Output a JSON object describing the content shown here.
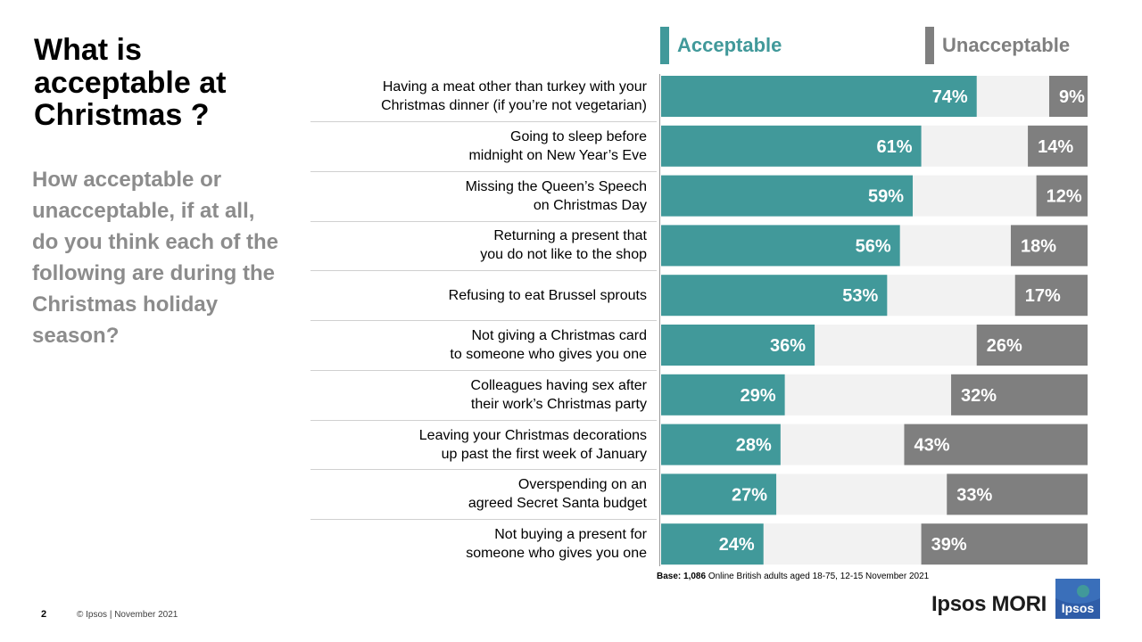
{
  "title": "What is acceptable at Christmas ?",
  "subtitle": "How acceptable or unacceptable, if at all, do you think each of the following are during the Christmas holiday season?",
  "legend": {
    "acceptable": "Acceptable",
    "unacceptable": "Unacceptable"
  },
  "colors": {
    "acceptable": "#41999a",
    "unacceptable": "#7f7f7f",
    "track": "#f2f2f2"
  },
  "chart_data": {
    "type": "bar",
    "orientation": "horizontal",
    "stacking": "acceptable anchored left, unacceptable anchored right",
    "xlim": [
      0,
      100
    ],
    "categories": [
      [
        "Having a meat other than turkey with your",
        "Christmas dinner (if you’re not vegetarian)"
      ],
      [
        "Going to sleep before",
        "midnight on New Year’s Eve"
      ],
      [
        "Missing the Queen’s Speech",
        "on Christmas Day"
      ],
      [
        "Returning a present that",
        "you do not like to the shop"
      ],
      [
        "Refusing to eat Brussel sprouts"
      ],
      [
        "Not giving a Christmas card",
        "to someone who gives you one"
      ],
      [
        "Colleagues having sex after",
        "their work’s Christmas party"
      ],
      [
        "Leaving your Christmas decorations",
        "up past the first week of January"
      ],
      [
        "Overspending on an",
        "agreed Secret Santa budget"
      ],
      [
        "Not buying a present for",
        "someone who gives you one"
      ]
    ],
    "series": [
      {
        "name": "Acceptable",
        "values": [
          74,
          61,
          59,
          56,
          53,
          36,
          29,
          28,
          27,
          24
        ]
      },
      {
        "name": "Unacceptable",
        "values": [
          9,
          14,
          12,
          18,
          17,
          26,
          32,
          43,
          33,
          39
        ]
      }
    ],
    "value_suffix": "%"
  },
  "base_note": {
    "label": "Base:",
    "value": "1,086",
    "text": " Online British adults aged 18-75, 12-15 November 2021"
  },
  "footer": {
    "page_number": "2",
    "copyright": "© Ipsos | November 2021"
  },
  "brand": {
    "name": "Ipsos MORI",
    "logo_text": "Ipsos"
  }
}
